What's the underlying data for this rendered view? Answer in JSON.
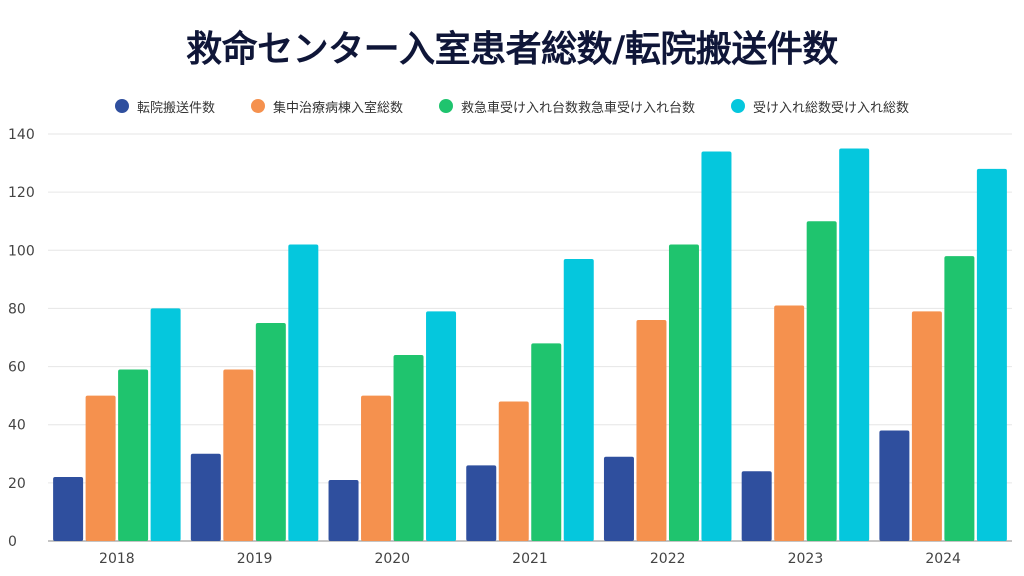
{
  "title": "救命センター入室患者総数/転院搬送件数",
  "colors": [
    "#2f4f9e",
    "#f5914e",
    "#1fc46e",
    "#05c7dd"
  ],
  "chart_data": {
    "type": "bar",
    "title": "救命センター入室患者総数/転院搬送件数",
    "categories": [
      "2018",
      "2019",
      "2020",
      "2021",
      "2022",
      "2023",
      "2024"
    ],
    "series": [
      {
        "name": "転院搬送件数",
        "values": [
          22,
          30,
          21,
          26,
          29,
          24,
          38
        ]
      },
      {
        "name": "集中治療病棟入室総数",
        "values": [
          50,
          59,
          50,
          48,
          76,
          81,
          79
        ]
      },
      {
        "name": "救急車受け入れ台数救急車受け入れ台数",
        "values": [
          59,
          75,
          64,
          68,
          102,
          110,
          98
        ]
      },
      {
        "name": "受け入れ総数受け入れ総数",
        "values": [
          80,
          102,
          79,
          97,
          134,
          135,
          128
        ]
      }
    ],
    "ylim": [
      0,
      140
    ],
    "yticks": [
      0,
      20,
      40,
      60,
      80,
      100,
      120,
      140
    ],
    "grid": true,
    "legend": "top"
  }
}
